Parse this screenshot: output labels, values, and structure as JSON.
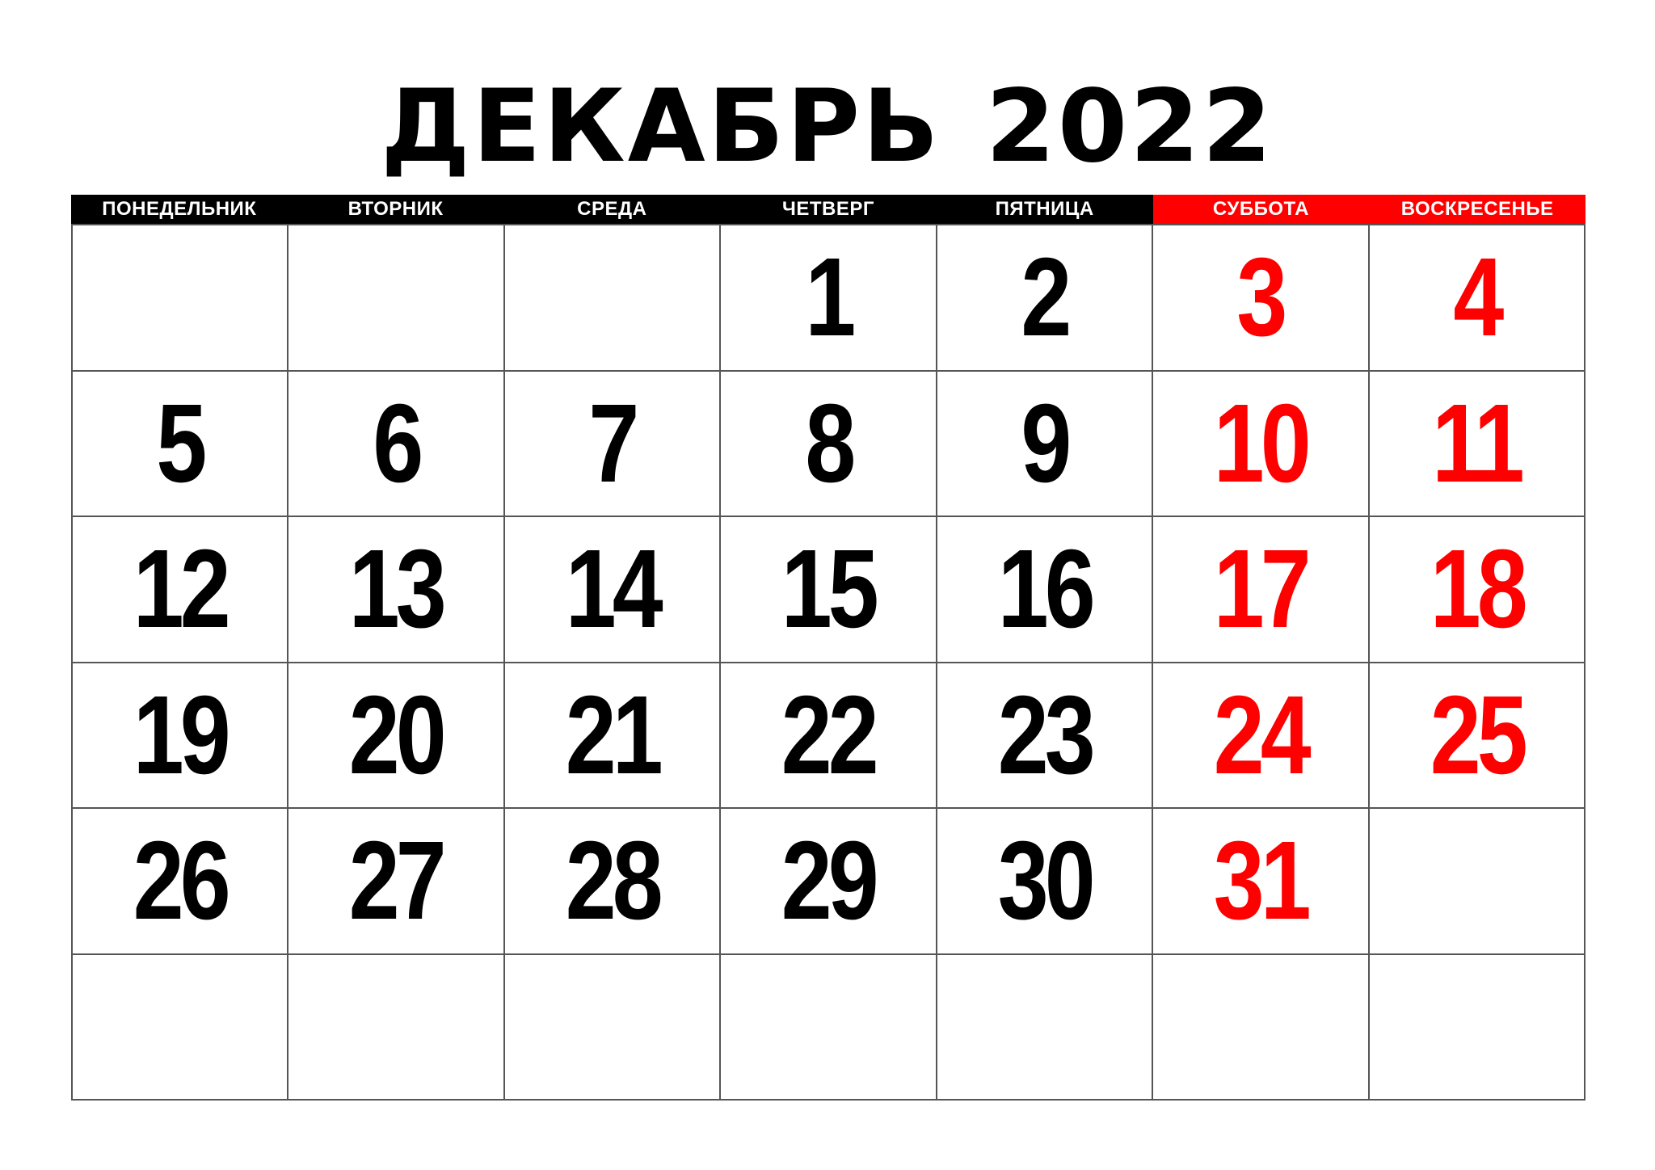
{
  "title": {
    "month": "ДЕКАБРЬ",
    "year": "2022"
  },
  "colors": {
    "weekday_header_bg": "#000000",
    "weekend_header_bg": "#ff0000",
    "weekday_number": "#000000",
    "weekend_number": "#ff0000",
    "grid_line": "#555555"
  },
  "weekdays": [
    {
      "label": "ПОНЕДЕЛЬНИК",
      "weekend": false
    },
    {
      "label": "ВТОРНИК",
      "weekend": false
    },
    {
      "label": "СРЕДА",
      "weekend": false
    },
    {
      "label": "ЧЕТВЕРГ",
      "weekend": false
    },
    {
      "label": "ПЯТНИЦА",
      "weekend": false
    },
    {
      "label": "СУББОТА",
      "weekend": true
    },
    {
      "label": "ВОСКРЕСЕНЬЕ",
      "weekend": true
    }
  ],
  "weeks": [
    [
      "",
      "",
      "",
      "1",
      "2",
      "3",
      "4"
    ],
    [
      "5",
      "6",
      "7",
      "8",
      "9",
      "10",
      "11"
    ],
    [
      "12",
      "13",
      "14",
      "15",
      "16",
      "17",
      "18"
    ],
    [
      "19",
      "20",
      "21",
      "22",
      "23",
      "24",
      "25"
    ],
    [
      "26",
      "27",
      "28",
      "29",
      "30",
      "31",
      ""
    ],
    [
      "",
      "",
      "",
      "",
      "",
      "",
      ""
    ]
  ]
}
